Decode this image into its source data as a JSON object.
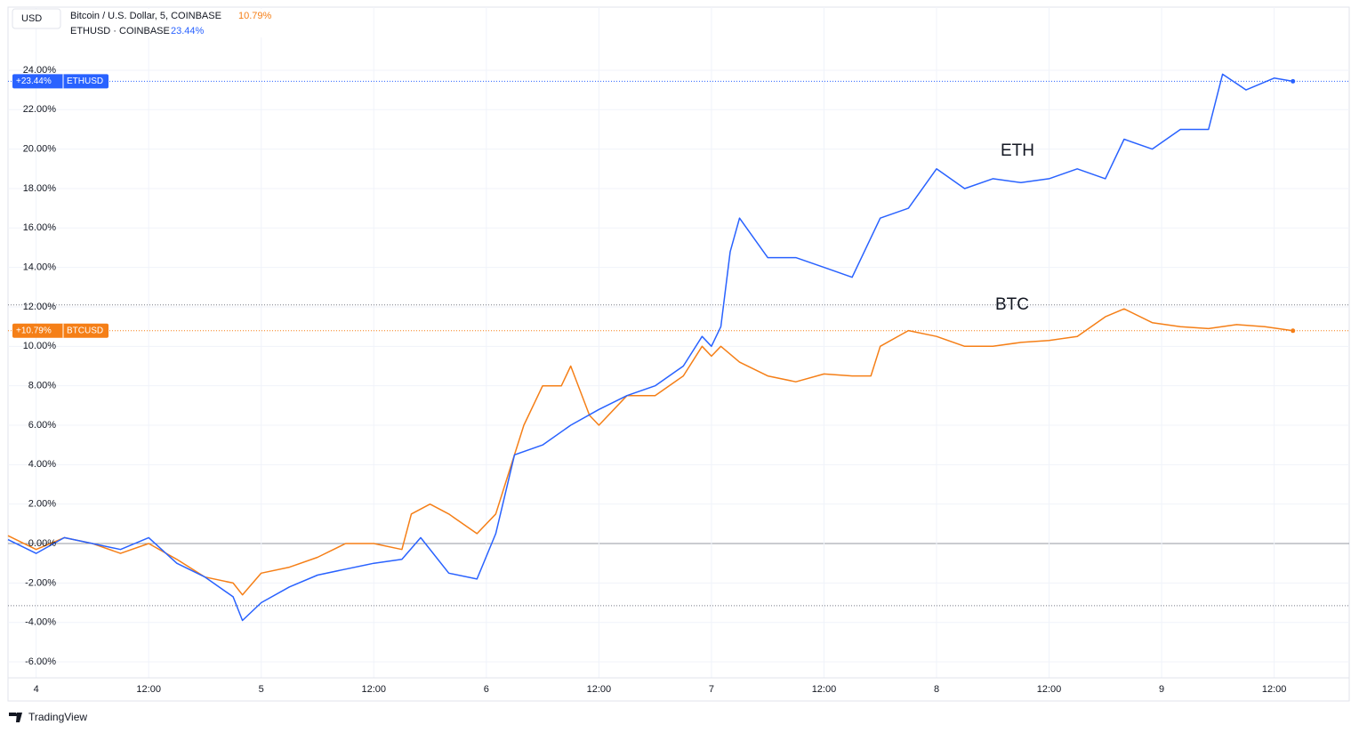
{
  "chart_data": {
    "type": "line",
    "currency": "USD",
    "brand": "TradingView",
    "annotations": [
      "ETH",
      "BTC"
    ],
    "xlim": [
      -3,
      140
    ],
    "xticks": [
      {
        "value": 0,
        "label": "4"
      },
      {
        "value": 12,
        "label": "12:00"
      },
      {
        "value": 24,
        "label": "5"
      },
      {
        "value": 36,
        "label": "12:00"
      },
      {
        "value": 48,
        "label": "6"
      },
      {
        "value": 60,
        "label": "12:00"
      },
      {
        "value": 72,
        "label": "7"
      },
      {
        "value": 84,
        "label": "12:00"
      },
      {
        "value": 96,
        "label": "8"
      },
      {
        "value": 108,
        "label": "12:00"
      },
      {
        "value": 120,
        "label": "9"
      },
      {
        "value": 132,
        "label": "12:00"
      }
    ],
    "ylim": [
      -6.81,
      27.2
    ],
    "yticks": [
      {
        "value": -6,
        "label": "-6.00%"
      },
      {
        "value": -4,
        "label": "-4.00%"
      },
      {
        "value": -2,
        "label": "-2.00%"
      },
      {
        "value": 0,
        "label": "0.00%"
      },
      {
        "value": 2,
        "label": "2.00%"
      },
      {
        "value": 4,
        "label": "4.00%"
      },
      {
        "value": 6,
        "label": "6.00%"
      },
      {
        "value": 8,
        "label": "8.00%"
      },
      {
        "value": 10,
        "label": "10.00%"
      },
      {
        "value": 12,
        "label": "12.00%"
      },
      {
        "value": 14,
        "label": "14.00%"
      },
      {
        "value": 16,
        "label": "16.00%"
      },
      {
        "value": 18,
        "label": "18.00%"
      },
      {
        "value": 20,
        "label": "20.00%"
      },
      {
        "value": 22,
        "label": "22.00%"
      },
      {
        "value": 24,
        "label": "24.00%"
      }
    ],
    "range_lines": [
      12.1,
      -3.15
    ],
    "series": [
      {
        "name": "Bitcoin / U.S. Dollar, 5, COINBASE",
        "symbol": "BTCUSD",
        "color": "#f57f17",
        "last_value": 10.79,
        "last_label": "10.79%",
        "badge_label": "+10.79%",
        "x": [
          -3,
          0,
          3,
          6,
          9,
          12,
          15,
          18,
          21,
          22,
          24,
          27,
          30,
          33,
          36,
          39,
          40,
          42,
          44,
          47,
          49,
          50,
          52,
          54,
          56,
          57,
          59,
          60,
          63,
          66,
          69,
          71,
          72,
          73,
          75,
          78,
          81,
          84,
          87,
          89,
          90,
          93,
          96,
          99,
          102,
          105,
          108,
          111,
          114,
          116,
          119,
          122,
          125,
          128,
          131,
          134
        ],
        "values": [
          0.4,
          -0.3,
          0.3,
          0,
          -0.5,
          0,
          -0.8,
          -1.7,
          -2,
          -2.6,
          -1.5,
          -1.2,
          -0.7,
          0,
          0,
          -0.3,
          1.5,
          2,
          1.5,
          0.5,
          1.5,
          3,
          6,
          8,
          8,
          9,
          6.5,
          6,
          7.5,
          7.5,
          8.5,
          10,
          9.5,
          10,
          9.2,
          8.5,
          8.2,
          8.6,
          8.5,
          8.5,
          10,
          10.8,
          10.5,
          10,
          10,
          10.2,
          10.3,
          10.5,
          11.5,
          11.9,
          11.2,
          11,
          10.9,
          11.1,
          11,
          10.79
        ]
      },
      {
        "name": "ETHUSD · COINBASE",
        "symbol": "ETHUSD",
        "color": "#2962ff",
        "last_value": 23.44,
        "last_label": "23.44%",
        "badge_label": "+23.44%",
        "x": [
          -3,
          0,
          3,
          6,
          9,
          12,
          15,
          18,
          21,
          22,
          24,
          27,
          30,
          33,
          36,
          39,
          41,
          44,
          47,
          49,
          51,
          54,
          57,
          60,
          63,
          66,
          69,
          71,
          72,
          73,
          74,
          75,
          78,
          81,
          84,
          87,
          90,
          93,
          96,
          99,
          102,
          105,
          108,
          111,
          114,
          116,
          119,
          122,
          125,
          126.5,
          129,
          132,
          134
        ],
        "values": [
          0.2,
          -0.5,
          0.3,
          0,
          -0.3,
          0.3,
          -1,
          -1.7,
          -2.7,
          -3.9,
          -3,
          -2.2,
          -1.6,
          -1.3,
          -1,
          -0.8,
          0.3,
          -1.5,
          -1.8,
          0.5,
          4.5,
          5,
          6,
          6.8,
          7.5,
          8,
          9,
          10.5,
          10,
          11,
          14.8,
          16.5,
          14.5,
          14.5,
          14,
          13.5,
          16.5,
          17,
          19,
          18,
          18.5,
          18.3,
          18.5,
          19,
          18.5,
          20.5,
          20,
          21,
          21,
          23.8,
          23,
          23.6,
          23.44
        ]
      }
    ]
  }
}
